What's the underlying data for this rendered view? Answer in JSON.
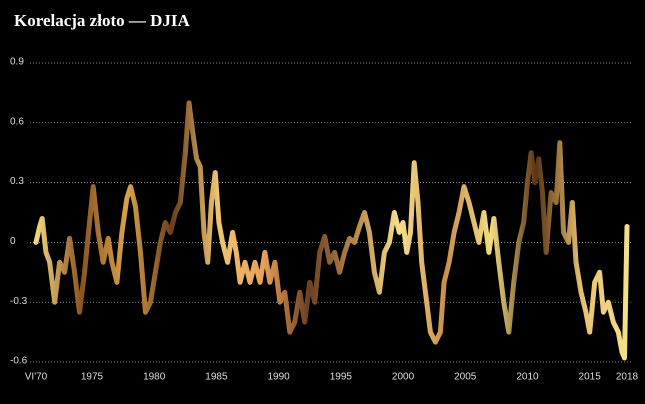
{
  "chart_data": {
    "type": "line",
    "title": "Korelacja złoto — DJIA",
    "x": [
      1970.5,
      1970.8,
      1971.0,
      1971.3,
      1971.6,
      1972.0,
      1972.4,
      1972.8,
      1973.2,
      1973.6,
      1974.0,
      1974.4,
      1974.8,
      1975.1,
      1975.5,
      1975.9,
      1976.3,
      1976.6,
      1977.0,
      1977.4,
      1977.8,
      1978.1,
      1978.5,
      1978.9,
      1979.3,
      1979.7,
      1980.1,
      1980.5,
      1980.9,
      1981.3,
      1981.7,
      1982.1,
      1982.5,
      1982.8,
      1983.1,
      1983.4,
      1983.7,
      1984.0,
      1984.3,
      1984.6,
      1984.9,
      1985.2,
      1985.5,
      1985.9,
      1986.3,
      1986.6,
      1986.9,
      1987.3,
      1987.7,
      1988.1,
      1988.5,
      1988.9,
      1989.3,
      1989.7,
      1990.1,
      1990.5,
      1990.9,
      1991.3,
      1991.7,
      1992.1,
      1992.5,
      1992.9,
      1993.3,
      1993.7,
      1994.1,
      1994.5,
      1994.9,
      1995.3,
      1995.7,
      1996.1,
      1996.5,
      1996.9,
      1997.3,
      1997.7,
      1998.1,
      1998.5,
      1998.9,
      1999.3,
      1999.7,
      2000.0,
      2000.3,
      2000.6,
      2000.9,
      2001.2,
      2001.5,
      2001.9,
      2002.2,
      2002.6,
      2003.0,
      2003.3,
      2003.7,
      2004.1,
      2004.5,
      2004.9,
      2005.3,
      2005.7,
      2006.1,
      2006.5,
      2006.9,
      2007.3,
      2007.7,
      2008.1,
      2008.5,
      2008.9,
      2009.3,
      2009.7,
      2010.0,
      2010.3,
      2010.6,
      2010.9,
      2011.2,
      2011.5,
      2011.9,
      2012.3,
      2012.6,
      2012.9,
      2013.3,
      2013.6,
      2013.9,
      2014.3,
      2014.7,
      2015.0,
      2015.4,
      2015.8,
      2016.1,
      2016.5,
      2016.9,
      2017.3,
      2017.6,
      2017.8,
      2018.0
    ],
    "values": [
      0.0,
      0.08,
      0.12,
      -0.05,
      -0.1,
      -0.3,
      -0.1,
      -0.15,
      0.02,
      -0.15,
      -0.35,
      -0.15,
      0.1,
      0.28,
      0.05,
      -0.1,
      0.02,
      -0.1,
      -0.2,
      0.05,
      0.22,
      0.28,
      0.18,
      -0.05,
      -0.35,
      -0.3,
      -0.15,
      0.0,
      0.1,
      0.05,
      0.15,
      0.2,
      0.45,
      0.7,
      0.55,
      0.42,
      0.38,
      0.05,
      -0.1,
      0.2,
      0.35,
      0.1,
      0.0,
      -0.1,
      0.05,
      -0.05,
      -0.2,
      -0.1,
      -0.2,
      -0.1,
      -0.2,
      -0.05,
      -0.2,
      -0.1,
      -0.3,
      -0.25,
      -0.45,
      -0.4,
      -0.25,
      -0.4,
      -0.2,
      -0.3,
      -0.05,
      0.03,
      -0.1,
      -0.05,
      -0.15,
      -0.05,
      0.02,
      0.0,
      0.08,
      0.15,
      0.05,
      -0.15,
      -0.25,
      -0.05,
      0.0,
      0.15,
      0.05,
      0.1,
      -0.05,
      0.05,
      0.4,
      0.2,
      -0.1,
      -0.3,
      -0.45,
      -0.5,
      -0.45,
      -0.2,
      -0.1,
      0.05,
      0.15,
      0.28,
      0.2,
      0.1,
      0.0,
      0.15,
      -0.05,
      0.12,
      -0.1,
      -0.3,
      -0.45,
      -0.2,
      0.0,
      0.1,
      0.3,
      0.45,
      0.3,
      0.42,
      0.25,
      -0.05,
      0.25,
      0.2,
      0.5,
      0.05,
      0.0,
      0.2,
      -0.1,
      -0.25,
      -0.35,
      -0.45,
      -0.2,
      -0.15,
      -0.35,
      -0.3,
      -0.4,
      -0.45,
      -0.55,
      -0.58,
      0.08
    ],
    "colors": [
      "#f3d77c",
      "#8a5523",
      "#d9a24a",
      "#6b3f1a",
      "#f0c570",
      "#e8a05a",
      "#6b4020",
      "#b8854a",
      "#f7e08a",
      "#c98e4a",
      "#f2dc80",
      "#5a3515",
      "#e7c070",
      "#f5e08a"
    ],
    "xlim": [
      1970.5,
      2018
    ],
    "xticks": [
      {
        "value": 1970.5,
        "label": "VI'70"
      },
      1975,
      1980,
      1985,
      1990,
      1995,
      2000,
      2005,
      2010,
      2015,
      2018
    ],
    "ylim": [
      -0.6,
      0.9
    ],
    "yticks": [
      0.9,
      0.6,
      0.3,
      0,
      -0.3,
      -0.6
    ],
    "grid": true
  }
}
